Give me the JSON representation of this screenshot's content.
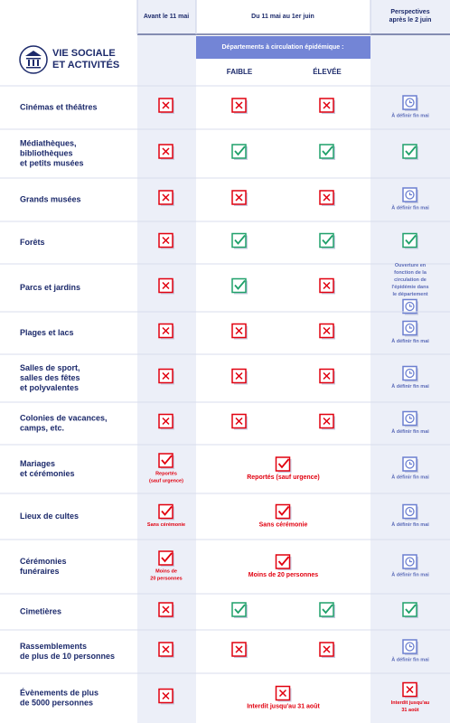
{
  "header": {
    "col_avant": "Avant le 11 mai",
    "period": "Du 11 mai au 1er juin",
    "perspectives": [
      "Perspectives",
      "après le 2 juin"
    ],
    "band": "Départements à circulation épidémique :",
    "faible": "FAIBLE",
    "elevee": "ÉLEVÉE"
  },
  "section": {
    "title": [
      "VIE SOCIALE",
      "ET ACTIVITÉS"
    ]
  },
  "table": {
    "rows": [
      {
        "label": [
          "Cinémas et théâtres"
        ],
        "cells": [
          {
            "status": "no"
          },
          {
            "status": "no"
          },
          {
            "status": "no"
          },
          {
            "status": "clock",
            "note": [
              "À définir fin mai"
            ]
          }
        ]
      },
      {
        "label": [
          "Médiathèques,",
          "bibliothèques",
          "et petits musées"
        ],
        "cells": [
          {
            "status": "no"
          },
          {
            "status": "yes"
          },
          {
            "status": "yes"
          },
          {
            "status": "yes"
          }
        ]
      },
      {
        "label": [
          "Grands musées"
        ],
        "cells": [
          {
            "status": "no"
          },
          {
            "status": "no"
          },
          {
            "status": "no"
          },
          {
            "status": "clock",
            "note": [
              "À définir fin mai"
            ]
          }
        ]
      },
      {
        "label": [
          "Forêts"
        ],
        "cells": [
          {
            "status": "no"
          },
          {
            "status": "yes"
          },
          {
            "status": "yes"
          },
          {
            "status": "yes"
          }
        ]
      },
      {
        "label": [
          "Parcs et jardins"
        ],
        "cells": [
          {
            "status": "no"
          },
          {
            "status": "yes"
          },
          {
            "status": "no"
          },
          {
            "status": "clock",
            "note_position": "above",
            "note": [
              "Ouverture en",
              "fonction de la",
              "circulation de",
              "l'épidémie dans",
              "le département"
            ]
          }
        ]
      },
      {
        "label": [
          "Plages et lacs"
        ],
        "cells": [
          {
            "status": "no"
          },
          {
            "status": "no"
          },
          {
            "status": "no"
          },
          {
            "status": "clock",
            "note": [
              "À définir fin mai"
            ]
          }
        ]
      },
      {
        "label": [
          "Salles de sport,",
          "salles des fêtes",
          "et polyvalentes"
        ],
        "cells": [
          {
            "status": "no"
          },
          {
            "status": "no"
          },
          {
            "status": "no"
          },
          {
            "status": "clock",
            "note": [
              "À définir fin mai"
            ]
          }
        ]
      },
      {
        "label": [
          "Colonies de vacances,",
          "camps, etc."
        ],
        "cells": [
          {
            "status": "no"
          },
          {
            "status": "no"
          },
          {
            "status": "no"
          },
          {
            "status": "clock",
            "note": [
              "À définir fin mai"
            ]
          }
        ]
      },
      {
        "label": [
          "Mariages",
          "et cérémonies"
        ],
        "cells": [
          {
            "status": "partial",
            "note": [
              "Reportés",
              "(sauf urgence)"
            ]
          },
          {
            "status": "partial",
            "span": 2,
            "note": [
              "Reportés (sauf urgence)"
            ]
          },
          {
            "status": "clock",
            "note": [
              "À définir fin mai"
            ]
          }
        ]
      },
      {
        "label": [
          "Lieux de cultes"
        ],
        "cells": [
          {
            "status": "partial",
            "note": [
              "Sans cérémonie"
            ]
          },
          {
            "status": "partial",
            "span": 2,
            "note": [
              "Sans cérémonie"
            ]
          },
          {
            "status": "clock",
            "note": [
              "À définir fin mai"
            ]
          }
        ]
      },
      {
        "label": [
          "Cérémonies",
          "funéraires"
        ],
        "cells": [
          {
            "status": "partial",
            "note": [
              "Moins de",
              "20 personnes"
            ]
          },
          {
            "status": "partial",
            "span": 2,
            "note": [
              "Moins de 20 personnes"
            ]
          },
          {
            "status": "clock",
            "note": [
              "À définir fin mai"
            ]
          }
        ]
      },
      {
        "label": [
          "Cimetières"
        ],
        "cells": [
          {
            "status": "no"
          },
          {
            "status": "yes"
          },
          {
            "status": "yes"
          },
          {
            "status": "yes"
          }
        ]
      },
      {
        "label": [
          "Rassemblements",
          "de plus de 10 personnes"
        ],
        "cells": [
          {
            "status": "no"
          },
          {
            "status": "no"
          },
          {
            "status": "no"
          },
          {
            "status": "clock",
            "note": [
              "À définir fin mai"
            ]
          }
        ]
      },
      {
        "label": [
          "Évènements de plus",
          "de 5000 personnes"
        ],
        "cells": [
          {
            "status": "no"
          },
          {
            "status": "no",
            "span": 2,
            "note": [
              "Interdit jusqu'au 31 août"
            ]
          },
          {
            "status": "no",
            "note": [
              "Interdit jusqu'au",
              "31 août"
            ]
          }
        ]
      }
    ]
  }
}
